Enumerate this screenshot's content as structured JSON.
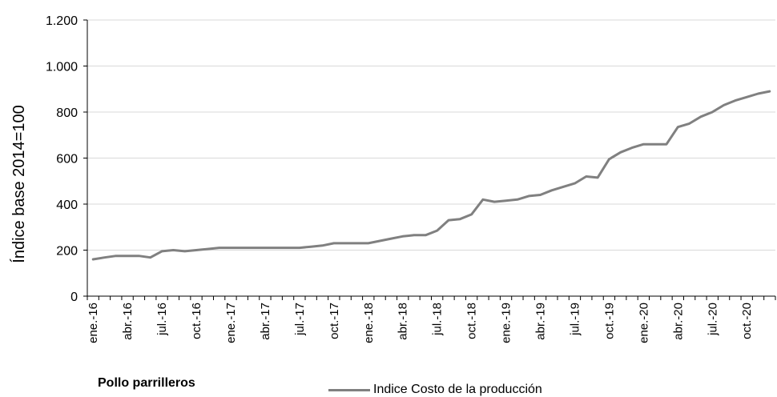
{
  "chart_data": {
    "type": "line",
    "ylabel": "Índice base 2014=100",
    "subtitle": "Pollo parrilleros",
    "ylim": [
      0,
      1200
    ],
    "yticks": [
      0,
      200,
      400,
      600,
      800,
      1000,
      1200
    ],
    "ytick_labels": [
      "0",
      "200",
      "400",
      "600",
      "800",
      "1.000",
      "1.200"
    ],
    "xtick_labels": [
      "ene.-16",
      "abr.-16",
      "jul.-16",
      "oct.-16",
      "ene.-17",
      "abr.-17",
      "jul.-17",
      "oct.-17",
      "ene.-18",
      "abr.-18",
      "jul.-18",
      "oct.-18",
      "ene.-19",
      "abr.-19",
      "jul.-19",
      "oct.-19",
      "ene.-20",
      "abr.-20",
      "jul.-20",
      "oct.-20"
    ],
    "x": [
      "ene.-16",
      "feb.-16",
      "mar.-16",
      "abr.-16",
      "may.-16",
      "jun.-16",
      "jul.-16",
      "ago.-16",
      "sep.-16",
      "oct.-16",
      "nov.-16",
      "dic.-16",
      "ene.-17",
      "feb.-17",
      "mar.-17",
      "abr.-17",
      "may.-17",
      "jun.-17",
      "jul.-17",
      "ago.-17",
      "sep.-17",
      "oct.-17",
      "nov.-17",
      "dic.-17",
      "ene.-18",
      "feb.-18",
      "mar.-18",
      "abr.-18",
      "may.-18",
      "jun.-18",
      "jul.-18",
      "ago.-18",
      "sep.-18",
      "oct.-18",
      "nov.-18",
      "dic.-18",
      "ene.-19",
      "feb.-19",
      "mar.-19",
      "abr.-19",
      "may.-19",
      "jun.-19",
      "jul.-19",
      "ago.-19",
      "sep.-19",
      "oct.-19",
      "nov.-19",
      "dic.-19",
      "ene.-20",
      "feb.-20",
      "mar.-20",
      "abr.-20",
      "may.-20",
      "jun.-20",
      "jul.-20",
      "ago.-20",
      "sep.-20",
      "oct.-20",
      "nov.-20",
      "dic.-20"
    ],
    "series": [
      {
        "name": "Indice Costo de la producción",
        "color": "#808080",
        "values": [
          160,
          168,
          175,
          175,
          175,
          168,
          195,
          200,
          195,
          200,
          205,
          210,
          210,
          210,
          210,
          210,
          210,
          210,
          210,
          215,
          220,
          230,
          230,
          230,
          230,
          240,
          250,
          260,
          265,
          265,
          285,
          330,
          335,
          355,
          420,
          410,
          415,
          420,
          435,
          440,
          460,
          475,
          490,
          520,
          515,
          595,
          625,
          645,
          660,
          660,
          660,
          735,
          750,
          780,
          800,
          830,
          850,
          865,
          880,
          890
        ]
      }
    ],
    "legend": "bottom",
    "grid": "horizontal"
  }
}
